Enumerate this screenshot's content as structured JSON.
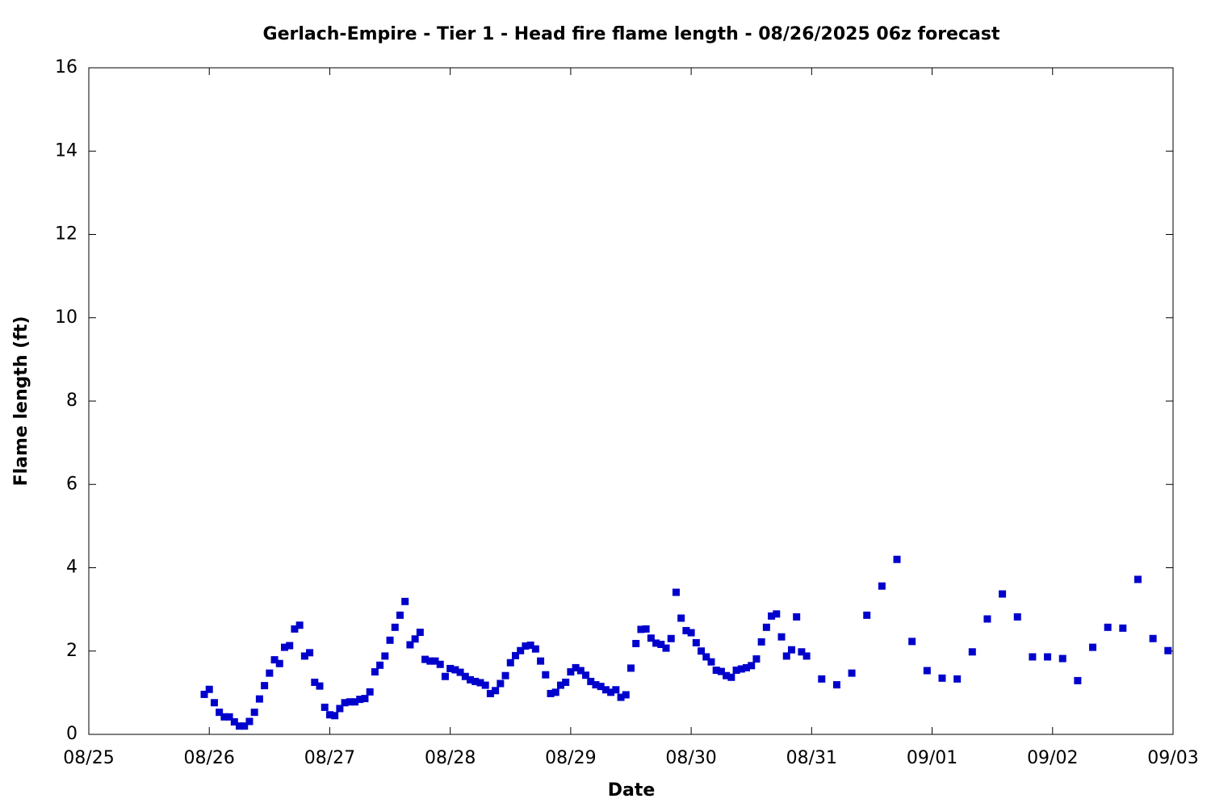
{
  "chart_data": {
    "type": "scatter",
    "title": "Gerlach-Empire - Tier 1 - Head fire flame length - 08/26/2025 06z forecast",
    "x_label": "Date",
    "y_label": "Flame length (ft)",
    "color": "#0000cc",
    "xlim": [
      0,
      216
    ],
    "xticks": [
      {
        "value": 0,
        "label": "08/25"
      },
      {
        "value": 24,
        "label": "08/26"
      },
      {
        "value": 48,
        "label": "08/27"
      },
      {
        "value": 72,
        "label": "08/28"
      },
      {
        "value": 96,
        "label": "08/29"
      },
      {
        "value": 120,
        "label": "08/30"
      },
      {
        "value": 144,
        "label": "08/31"
      },
      {
        "value": 168,
        "label": "09/01"
      },
      {
        "value": 192,
        "label": "09/02"
      },
      {
        "value": 216,
        "label": "09/03"
      }
    ],
    "ylim": [
      0,
      16
    ],
    "yticks": [
      0,
      2,
      4,
      6,
      8,
      10,
      12,
      14,
      16
    ],
    "x": [
      23,
      24,
      25,
      26,
      27,
      28,
      29,
      30,
      31,
      32,
      33,
      34,
      35,
      36,
      37,
      38,
      39,
      40,
      41,
      42,
      43,
      44,
      45,
      46,
      47,
      48,
      49,
      50,
      51,
      52,
      53,
      54,
      55,
      56,
      57,
      58,
      59,
      60,
      61,
      62,
      63,
      64,
      65,
      66,
      67,
      68,
      69,
      70,
      71,
      72,
      73,
      74,
      75,
      76,
      77,
      78,
      79,
      80,
      81,
      82,
      83,
      84,
      85,
      86,
      87,
      88,
      89,
      90,
      91,
      92,
      93,
      94,
      95,
      96,
      97,
      98,
      99,
      100,
      101,
      102,
      103,
      104,
      105,
      106,
      107,
      108,
      109,
      110,
      111,
      112,
      113,
      114,
      115,
      116,
      117,
      118,
      119,
      120,
      121,
      122,
      123,
      124,
      125,
      126,
      127,
      128,
      129,
      130,
      131,
      132,
      133,
      134,
      135,
      136,
      137,
      138,
      139,
      140,
      141,
      142,
      143,
      146,
      149,
      152,
      155,
      158,
      161,
      164,
      167,
      170,
      173,
      176,
      179,
      182,
      185,
      188,
      191,
      194,
      197,
      200,
      203,
      206,
      209,
      212,
      215
    ],
    "values": [
      0.96,
      1.08,
      0.76,
      0.53,
      0.42,
      0.42,
      0.3,
      0.2,
      0.2,
      0.31,
      0.53,
      0.85,
      1.17,
      1.47,
      1.79,
      1.7,
      2.09,
      2.13,
      2.53,
      2.62,
      1.88,
      1.96,
      1.25,
      1.16,
      0.65,
      0.47,
      0.45,
      0.62,
      0.76,
      0.78,
      0.78,
      0.84,
      0.86,
      1.02,
      1.5,
      1.66,
      1.88,
      2.26,
      2.57,
      2.86,
      3.19,
      2.15,
      2.29,
      2.45,
      1.8,
      1.76,
      1.76,
      1.68,
      1.39,
      1.58,
      1.55,
      1.49,
      1.39,
      1.31,
      1.27,
      1.24,
      1.18,
      0.98,
      1.05,
      1.22,
      1.41,
      1.72,
      1.89,
      2.01,
      2.12,
      2.14,
      2.05,
      1.76,
      1.43,
      0.98,
      1.01,
      1.18,
      1.25,
      1.5,
      1.6,
      1.53,
      1.42,
      1.27,
      1.19,
      1.15,
      1.07,
      1.01,
      1.07,
      0.89,
      0.95,
      1.59,
      2.18,
      2.52,
      2.53,
      2.31,
      2.19,
      2.16,
      2.07,
      2.3,
      3.41,
      2.79,
      2.49,
      2.44,
      2.2,
      2.0,
      1.86,
      1.74,
      1.54,
      1.51,
      1.41,
      1.37,
      1.54,
      1.57,
      1.6,
      1.65,
      1.81,
      2.22,
      2.57,
      2.84,
      2.89,
      2.34,
      1.88,
      2.03,
      2.82,
      1.98,
      1.88,
      1.33,
      1.19,
      1.47,
      2.86,
      3.56,
      4.2,
      2.23,
      1.53,
      1.35,
      1.33,
      1.98,
      2.77,
      3.37,
      2.82,
      1.86,
      1.86,
      1.82,
      1.29,
      2.09,
      2.57,
      2.55,
      3.72,
      2.3,
      2.01
    ]
  }
}
